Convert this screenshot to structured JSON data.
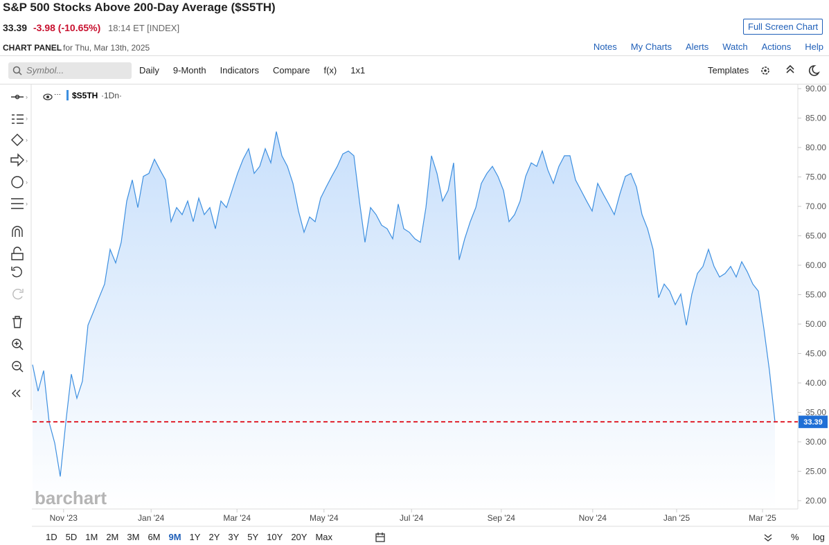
{
  "header": {
    "title": "S&P 500 Stocks Above 200-Day Average ($S5TH)",
    "change": "-3.98 (-10.65%)",
    "time": "18:14 ET [INDEX]",
    "full_screen": "Full Screen Chart",
    "panel_label": "CHART PANEL",
    "panel_date": "for Thu, Mar 13th, 2025"
  },
  "menu": [
    "Notes",
    "My Charts",
    "Alerts",
    "Watch",
    "Actions",
    "Help"
  ],
  "toolbar": {
    "symbol_placeholder": "Symbol...",
    "items": [
      "Daily",
      "9-Month",
      "Indicators",
      "Compare",
      "f(x)",
      "1x1"
    ],
    "templates": "Templates"
  },
  "ranges": [
    "1D",
    "5D",
    "1M",
    "2M",
    "3M",
    "6M",
    "9M",
    "1Y",
    "2Y",
    "3Y",
    "5Y",
    "10Y",
    "20Y",
    "Max"
  ],
  "active_range": "9M",
  "scale_options": [
    "%",
    "log"
  ],
  "chart_data": {
    "type": "line",
    "interval": "·1Dn·",
    "watermark": "barchart",
    "series": [
      {
        "name": "$S5TH",
        "color": "#3d8fe0",
        "values": [
          43.1,
          38.6,
          42.1,
          33.3,
          29.8,
          24.1,
          33.3,
          41.5,
          37.4,
          40.3,
          49.8,
          52.1,
          54.5,
          56.8,
          62.7,
          60.4,
          63.9,
          70.9,
          74.5,
          69.8,
          75.1,
          75.6,
          78.0,
          76.2,
          74.5,
          67.4,
          69.8,
          68.6,
          70.9,
          67.4,
          71.4,
          68.6,
          69.8,
          66.2,
          70.9,
          69.8,
          72.7,
          75.6,
          78.0,
          79.8,
          75.6,
          76.8,
          79.8,
          77.4,
          82.7,
          78.6,
          76.8,
          73.9,
          69.2,
          65.6,
          68.2,
          67.4,
          71.4,
          73.3,
          75.1,
          76.8,
          78.9,
          79.4,
          78.6,
          70.9,
          63.9,
          69.8,
          68.6,
          66.8,
          66.2,
          64.5,
          70.4,
          66.2,
          65.6,
          64.5,
          63.9,
          69.8,
          78.6,
          75.6,
          70.9,
          72.7,
          77.4,
          60.9,
          64.5,
          67.4,
          69.8,
          73.9,
          75.6,
          76.8,
          75.1,
          72.7,
          67.4,
          68.6,
          70.9,
          75.1,
          77.4,
          76.8,
          79.4,
          76.2,
          73.9,
          76.8,
          78.6,
          78.6,
          74.5,
          72.7,
          70.9,
          69.2,
          73.9,
          72.1,
          70.4,
          68.6,
          72.1,
          75.1,
          75.6,
          73.3,
          68.6,
          66.2,
          62.7,
          54.5,
          56.8,
          55.6,
          53.3,
          55.1,
          49.8,
          55.1,
          58.6,
          59.8,
          62.7,
          59.8,
          58.0,
          58.6,
          59.8,
          58.0,
          60.6,
          58.9,
          56.8,
          55.6,
          49.2,
          42.1,
          33.39
        ]
      }
    ],
    "last_line_color": "#e0202c",
    "xlim": [
      0,
      134
    ],
    "xticks": [
      {
        "value": 5.6,
        "label": "Nov '23"
      },
      {
        "value": 21.4,
        "label": "Jan '24"
      },
      {
        "value": 36.9,
        "label": "Mar '24"
      },
      {
        "value": 52.6,
        "label": "May '24"
      },
      {
        "value": 68.4,
        "label": "Jul '24"
      },
      {
        "value": 84.6,
        "label": "Sep '24"
      },
      {
        "value": 101.1,
        "label": "Nov '24"
      },
      {
        "value": 116.25,
        "label": "Jan '25"
      },
      {
        "value": 131.75,
        "label": "Mar '25"
      }
    ],
    "ylim": [
      20,
      90
    ],
    "yticks": [
      {
        "value": 20,
        "label": "20.00"
      },
      {
        "value": 25,
        "label": "25.00"
      },
      {
        "value": 30,
        "label": "30.00"
      },
      {
        "value": 35,
        "label": "35.00"
      },
      {
        "value": 40,
        "label": "40.00"
      },
      {
        "value": 45,
        "label": "45.00"
      },
      {
        "value": 50,
        "label": "50.00"
      },
      {
        "value": 55,
        "label": "55.00"
      },
      {
        "value": 60,
        "label": "60.00"
      },
      {
        "value": 65,
        "label": "65.00"
      },
      {
        "value": 70,
        "label": "70.00"
      },
      {
        "value": 75,
        "label": "75.00"
      },
      {
        "value": 80,
        "label": "80.00"
      },
      {
        "value": 85,
        "label": "85.00"
      },
      {
        "value": 90,
        "label": "90.00"
      }
    ],
    "grid": false
  }
}
